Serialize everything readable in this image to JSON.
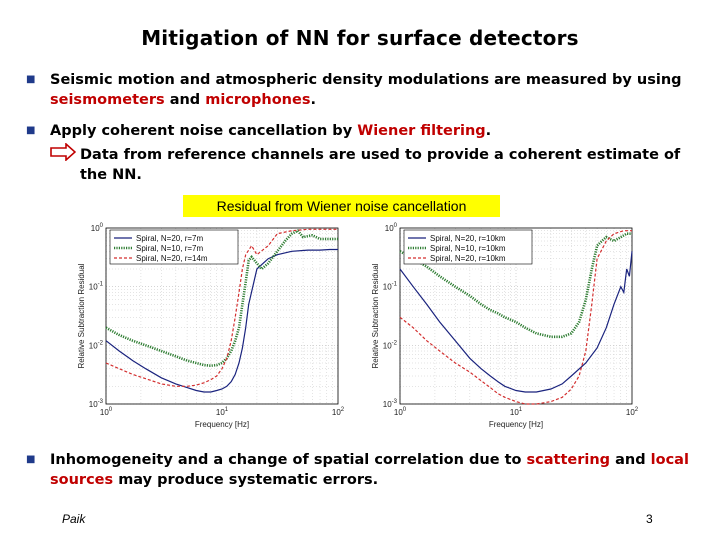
{
  "title": "Mitigation of NN for surface detectors",
  "bullets": [
    {
      "parts": [
        "Seismic motion and atmospheric density modulations are measured by using ",
        "seismometers",
        " and ",
        "microphones",
        "."
      ]
    },
    {
      "parts": [
        "Apply coherent noise cancellation by ",
        "Wiener filtering",
        "."
      ]
    }
  ],
  "sub_bullet": "Data from reference channels are used to provide a coherent estimate of the NN.",
  "banner": "Residual from Wiener noise cancellation",
  "bullet3": {
    "parts": [
      "Inhomogeneity and a change of spatial correlation due to ",
      "scattering",
      " and ",
      "local sources",
      " may produce systematic errors."
    ]
  },
  "footer": {
    "author": "Paik",
    "page": "3"
  },
  "colors": {
    "blue": "#1a237e",
    "green": "#2e7d32",
    "red": "#d32f2f",
    "banner": "#ffff00",
    "bullet": "#1f3a8a"
  },
  "icons": {
    "bullet": "square-bullet-icon",
    "arrow": "right-arrow-icon"
  },
  "chart_data": [
    {
      "type": "line",
      "xlabel": "Frequency [Hz]",
      "ylabel": "Relative Subtraction Residual",
      "xscale": "log",
      "yscale": "log",
      "xlim": [
        1,
        100
      ],
      "ylim": [
        0.001,
        1
      ],
      "xticks": [
        "10^0",
        "10^1",
        "10^2"
      ],
      "yticks": [
        "10^-3",
        "10^-2",
        "10^-1",
        "10^0"
      ],
      "legend": "top-left",
      "series": [
        {
          "name": "Spiral, N=20, r=7m",
          "color": "blue",
          "style": "solid",
          "x": [
            1,
            1.3,
            1.7,
            2.2,
            3,
            4,
            5,
            6,
            7,
            8,
            9,
            10,
            11,
            12,
            13,
            14,
            15,
            16,
            17,
            20,
            25,
            30,
            40,
            55,
            70,
            85,
            100
          ],
          "y": [
            0.012,
            0.008,
            0.0055,
            0.004,
            0.0028,
            0.0022,
            0.0019,
            0.0017,
            0.0016,
            0.0016,
            0.0017,
            0.0018,
            0.002,
            0.0024,
            0.0032,
            0.005,
            0.009,
            0.02,
            0.05,
            0.2,
            0.3,
            0.35,
            0.4,
            0.42,
            0.42,
            0.43,
            0.43
          ]
        },
        {
          "name": "Spiral, N=10, r=7m",
          "color": "green",
          "style": "dotted",
          "x": [
            1,
            1.3,
            1.7,
            2.2,
            3,
            4,
            5,
            6,
            7,
            8,
            9,
            10,
            11,
            12,
            13,
            14,
            15,
            16,
            17,
            18,
            20,
            22,
            25,
            30,
            35,
            40,
            45,
            50,
            60,
            70,
            85,
            100
          ],
          "y": [
            0.02,
            0.015,
            0.012,
            0.01,
            0.008,
            0.0065,
            0.0055,
            0.005,
            0.0046,
            0.0045,
            0.0046,
            0.005,
            0.006,
            0.008,
            0.012,
            0.02,
            0.05,
            0.12,
            0.28,
            0.32,
            0.25,
            0.2,
            0.25,
            0.4,
            0.6,
            0.8,
            0.9,
            0.7,
            0.75,
            0.65,
            0.65,
            0.65
          ]
        },
        {
          "name": "Spiral, N=20, r=14m",
          "color": "red",
          "style": "dashed",
          "x": [
            1,
            1.3,
            1.7,
            2.2,
            3,
            4,
            5,
            6,
            7,
            8,
            9,
            10,
            11,
            12,
            13,
            14,
            15,
            16,
            18,
            20,
            25,
            30,
            40,
            55,
            70,
            85,
            100
          ],
          "y": [
            0.005,
            0.004,
            0.0032,
            0.0027,
            0.0022,
            0.002,
            0.002,
            0.0021,
            0.0023,
            0.0026,
            0.003,
            0.004,
            0.006,
            0.012,
            0.03,
            0.08,
            0.2,
            0.35,
            0.5,
            0.35,
            0.5,
            0.8,
            0.9,
            0.95,
            0.95,
            0.95,
            0.95
          ]
        }
      ]
    },
    {
      "type": "line",
      "xlabel": "Frequency [Hz]",
      "ylabel": "Relative Subtraction Residual",
      "xscale": "log",
      "yscale": "log",
      "xlim": [
        1,
        100
      ],
      "ylim": [
        0.001,
        1
      ],
      "xticks": [
        "10^0",
        "10^1",
        "10^2"
      ],
      "yticks": [
        "10^-3",
        "10^-2",
        "10^-1",
        "10^0"
      ],
      "legend": "top-left",
      "series": [
        {
          "name": "Spiral, N=20, r=10km",
          "color": "blue",
          "style": "solid",
          "x": [
            1,
            1.3,
            1.7,
            2.2,
            3,
            4,
            5,
            6,
            7,
            8,
            10,
            12,
            15,
            20,
            25,
            30,
            40,
            50,
            60,
            70,
            80,
            85,
            90,
            95,
            100
          ],
          "y": [
            0.2,
            0.1,
            0.05,
            0.025,
            0.012,
            0.006,
            0.004,
            0.003,
            0.0024,
            0.002,
            0.0017,
            0.0016,
            0.0016,
            0.0018,
            0.0022,
            0.003,
            0.005,
            0.009,
            0.02,
            0.05,
            0.1,
            0.08,
            0.2,
            0.15,
            0.4
          ]
        },
        {
          "name": "Spiral, N=10, r=10km",
          "color": "green",
          "style": "dotted",
          "x": [
            1,
            1.3,
            1.7,
            2.2,
            3,
            4,
            5,
            6,
            7,
            8,
            10,
            12,
            15,
            20,
            25,
            30,
            35,
            40,
            45,
            50,
            55,
            60,
            70,
            80,
            90,
            100
          ],
          "y": [
            0.4,
            0.3,
            0.22,
            0.15,
            0.1,
            0.07,
            0.05,
            0.04,
            0.035,
            0.03,
            0.025,
            0.02,
            0.016,
            0.014,
            0.014,
            0.016,
            0.025,
            0.06,
            0.2,
            0.5,
            0.6,
            0.7,
            0.6,
            0.7,
            0.8,
            0.8
          ]
        },
        {
          "name": "Spiral, N=20, r=10km",
          "color": "red",
          "style": "dashed",
          "x": [
            1,
            1.3,
            1.7,
            2.2,
            3,
            4,
            5,
            6,
            7,
            8,
            10,
            12,
            15,
            20,
            25,
            30,
            35,
            40,
            45,
            50,
            60,
            70,
            85,
            100
          ],
          "y": [
            0.03,
            0.02,
            0.012,
            0.008,
            0.005,
            0.0035,
            0.0025,
            0.0019,
            0.0015,
            0.0013,
            0.0011,
            0.001,
            0.001,
            0.0011,
            0.0013,
            0.0018,
            0.003,
            0.008,
            0.05,
            0.3,
            0.6,
            0.8,
            0.9,
            0.9
          ]
        }
      ]
    }
  ]
}
